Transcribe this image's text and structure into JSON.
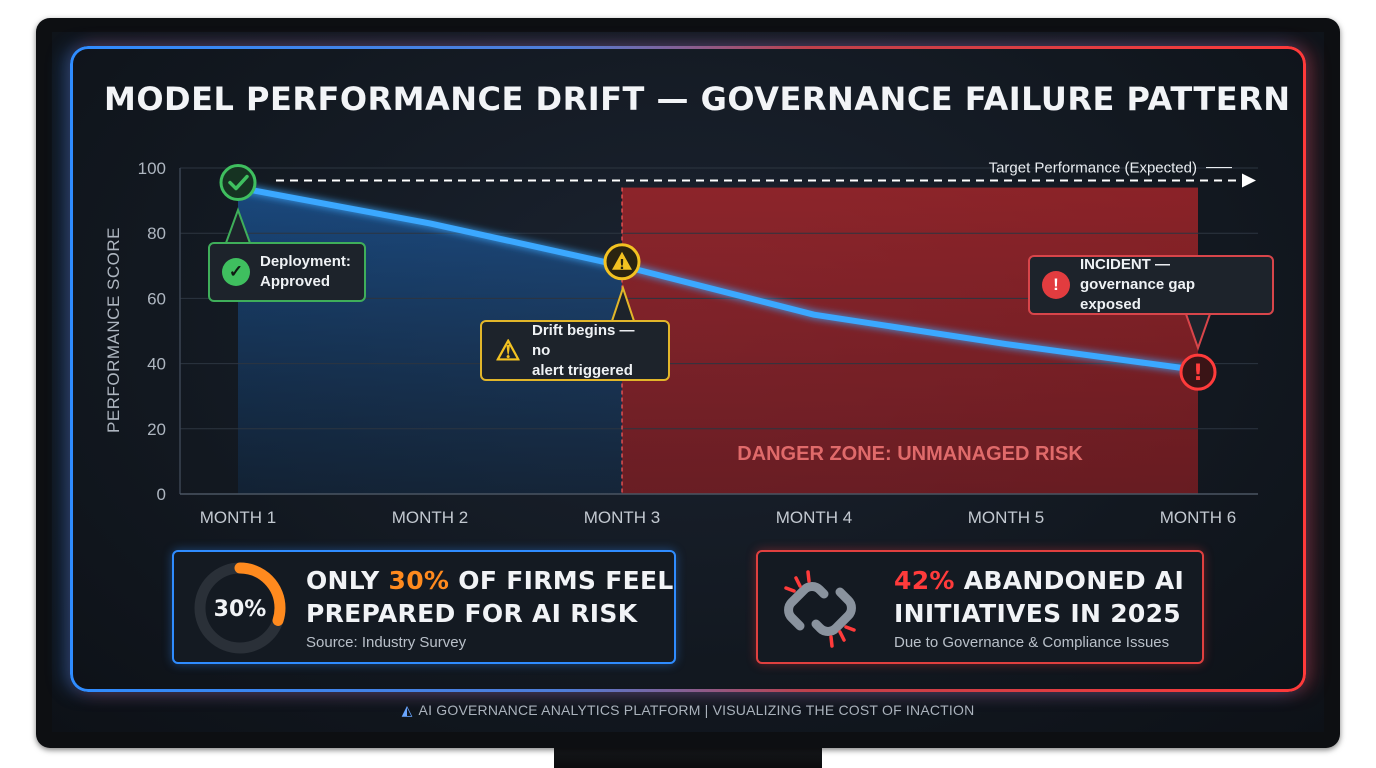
{
  "title": "MODEL PERFORMANCE DRIFT — GOVERNANCE FAILURE PATTERN",
  "chart_data": {
    "type": "line",
    "title": "MODEL PERFORMANCE DRIFT — GOVERNANCE FAILURE PATTERN",
    "ylabel": "PERFORMANCE SCORE",
    "xlabel": "",
    "categories": [
      "MONTH 1",
      "MONTH 2",
      "MONTH 3",
      "MONTH 4",
      "MONTH 5",
      "MONTH 6"
    ],
    "y_ticks": [
      "0",
      "20",
      "40",
      "60",
      "80",
      "100"
    ],
    "ylim": [
      0,
      100
    ],
    "grid": true,
    "series": [
      {
        "values": [
          94,
          83,
          70,
          55,
          46,
          38
        ],
        "color": "#3aa8ff"
      }
    ],
    "target_line": {
      "label": "Target Performance (Expected)",
      "value": 94
    },
    "danger_zone": {
      "label": "DANGER ZONE: UNMANAGED RISK",
      "from": "MONTH 3",
      "to": "MONTH 6"
    },
    "annotations": [
      {
        "label": "Deployment: Approved",
        "x": "MONTH 1",
        "icon": "check-icon"
      },
      {
        "label": "Drift begins — no alert triggered",
        "x": "MONTH 3",
        "icon": "warning-icon"
      },
      {
        "label": "INCIDENT — governance gap exposed",
        "x": "MONTH 6",
        "icon": "exclamation-icon"
      }
    ]
  },
  "callouts": {
    "deployment": {
      "line1": "Deployment:",
      "line2": "Approved"
    },
    "drift": {
      "line1": "Drift begins — no",
      "line2": "alert triggered"
    },
    "incident": {
      "line1": "INCIDENT —",
      "line2": "governance gap exposed"
    }
  },
  "stats": {
    "preparedness": {
      "ring_label": "30%",
      "ring_fraction": 0.3,
      "line1_pre": "ONLY ",
      "line1_highlight": "30%",
      "line1_post": " OF FIRMS FEEL",
      "line2": "PREPARED FOR AI RISK",
      "source": "Source: Industry Survey"
    },
    "abandoned": {
      "line1_highlight": "42%",
      "line1_post": " ABANDONED AI",
      "line2": "INITIATIVES IN 2025",
      "source": "Due to Governance & Compliance Issues",
      "icon": "broken-link-icon"
    }
  },
  "footer": {
    "text": "AI GOVERNANCE ANALYTICS PLATFORM | VISUALIZING THE COST OF INACTION"
  },
  "colors": {
    "accent_blue": "#2f8cff",
    "accent_red": "#ff3a3a",
    "line": "#3aa8ff",
    "ok_green": "#3fbf5f",
    "warn_yellow": "#f3c221",
    "highlight_orange": "#ff8a1e"
  }
}
